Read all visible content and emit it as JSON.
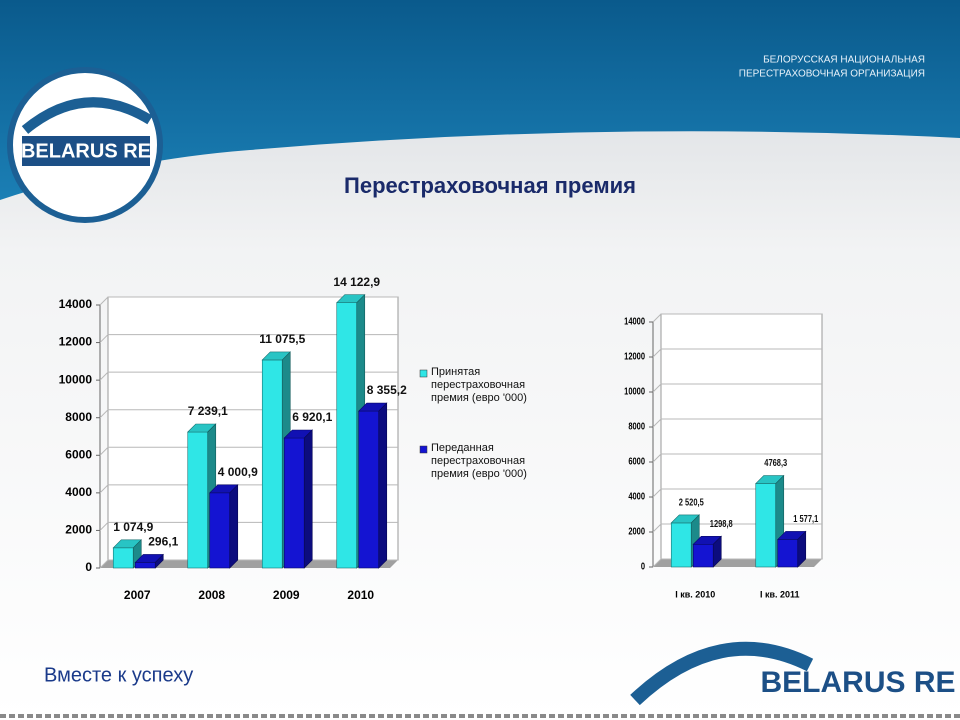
{
  "slide": {
    "org_lines": [
      "БЕЛОРУССКАЯ НАЦИОНАЛЬНАЯ",
      "ПЕРЕСТРАХОВОЧНАЯ ОРГАНИЗАЦИЯ"
    ],
    "logo": "BELARUS RE",
    "title": "Перестраховочная премия",
    "footer": "Вместе к успеху"
  },
  "chart_data": [
    {
      "type": "bar3d",
      "categories": [
        "2007",
        "2008",
        "2009",
        "2010"
      ],
      "series": [
        {
          "name": "Принятая перестраховочная премия (евро '000)",
          "color": "#2fe6e6",
          "values": [
            1074.9,
            7239.1,
            11075.5,
            14122.9
          ],
          "value_labels": [
            "1 074,9",
            "7 239,1",
            "11 075,5",
            "14 122,9"
          ]
        },
        {
          "name": "Переданная перестраховочная премия (евро '000)",
          "color": "#1414d2",
          "values": [
            296.1,
            4000.9,
            6920.1,
            8355.2
          ],
          "value_labels": [
            "296,1",
            "4 000,9",
            "6 920,1",
            "8 355,2"
          ]
        }
      ],
      "ylim": [
        0,
        14000
      ],
      "yticks": [
        0,
        2000,
        4000,
        6000,
        8000,
        10000,
        12000,
        14000
      ],
      "grid": true,
      "legend": "right"
    },
    {
      "type": "bar3d",
      "categories": [
        "I кв. 2010",
        "I кв. 2011"
      ],
      "series": [
        {
          "color": "#2fe6e6",
          "values": [
            2520.5,
            4768.3
          ],
          "value_labels": [
            "2 520,5",
            "4768,3"
          ]
        },
        {
          "color": "#1414d2",
          "values": [
            1298.8,
            1577.1
          ],
          "value_labels": [
            "1298,8",
            "1 577,1"
          ]
        }
      ],
      "ylim": [
        0,
        14000
      ],
      "yticks": [
        0,
        2000,
        4000,
        6000,
        8000,
        10000,
        12000,
        14000
      ],
      "grid": true
    }
  ]
}
